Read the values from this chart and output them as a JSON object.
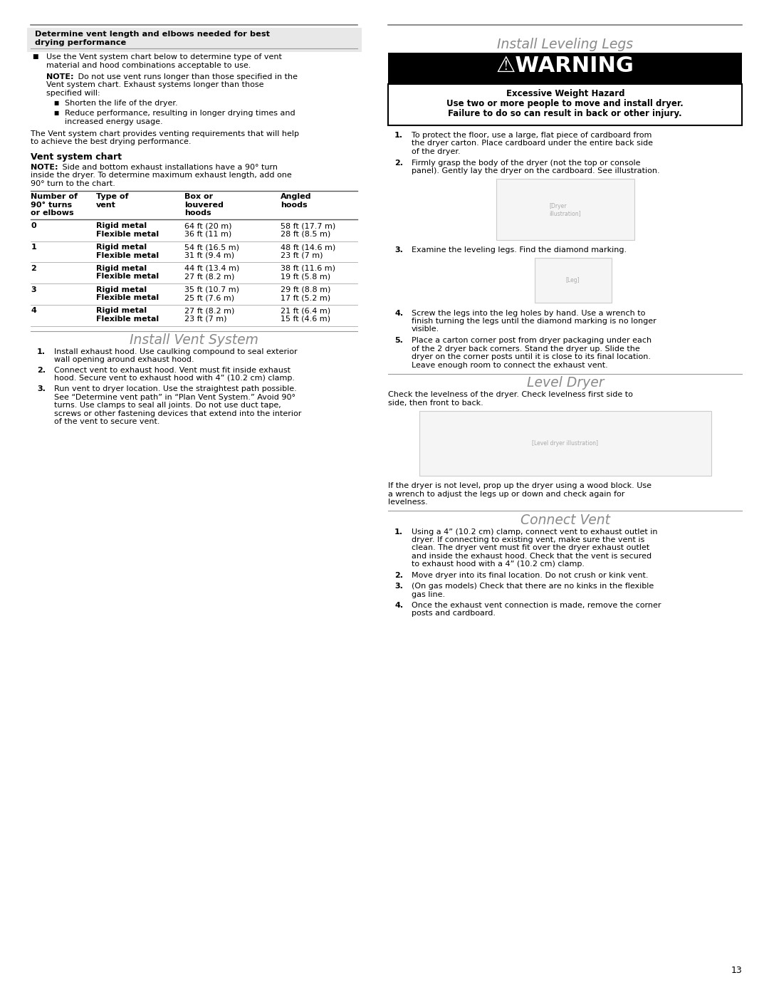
{
  "page_bg": "#ffffff",
  "page_width": 10.8,
  "page_height": 13.97,
  "dpi": 100,
  "top_section_title_l1": "Determine vent length and elbows needed for best",
  "top_section_title_l2": "drying performance",
  "bullet1_l1": "Use the Vent system chart below to determine type of vent",
  "bullet1_l2": "material and hood combinations acceptable to use.",
  "note1_bold": "NOTE:",
  "note1_rest_l1": " Do not use vent runs longer than those specified in the",
  "note1_rest_l2": "Vent system chart. Exhaust systems longer than those",
  "note1_rest_l3": "specified will:",
  "sub_bullet1": "Shorten the life of the dryer.",
  "sub_bullet2_l1": "Reduce performance, resulting in longer drying times and",
  "sub_bullet2_l2": "increased energy usage.",
  "para1_l1": "The Vent system chart provides venting requirements that will help",
  "para1_l2": "to achieve the best drying performance.",
  "vent_chart_title": "Vent system chart",
  "vent_chart_note_bold": "NOTE:",
  "vent_chart_note_l1": " Side and bottom exhaust installations have a 90° turn",
  "vent_chart_note_l2": "inside the dryer. To determine maximum exhaust length, add one",
  "vent_chart_note_l3": "90° turn to the chart.",
  "table_col0_hdr": "Number of\n90° turns\nor elbows",
  "table_col1_hdr": "Type of\nvent",
  "table_col2_hdr": "Box or\nlouvered\nhoods",
  "table_col3_hdr": "Angled\nhoods",
  "table_rows": [
    [
      "0",
      "Rigid metal\nFlexible metal",
      "64 ft (20 m)\n36 ft (11 m)",
      "58 ft (17.7 m)\n28 ft (8.5 m)"
    ],
    [
      "1",
      "Rigid metal\nFlexible metal",
      "54 ft (16.5 m)\n31 ft (9.4 m)",
      "48 ft (14.6 m)\n23 ft (7 m)"
    ],
    [
      "2",
      "Rigid metal\nFlexible metal",
      "44 ft (13.4 m)\n27 ft (8.2 m)",
      "38 ft (11.6 m)\n19 ft (5.8 m)"
    ],
    [
      "3",
      "Rigid metal\nFlexible metal",
      "35 ft (10.7 m)\n25 ft (7.6 m)",
      "29 ft (8.8 m)\n17 ft (5.2 m)"
    ],
    [
      "4",
      "Rigid metal\nFlexible metal",
      "27 ft (8.2 m)\n23 ft (7 m)",
      "21 ft (6.4 m)\n15 ft (4.6 m)"
    ]
  ],
  "install_vent_title": "Install Vent System",
  "ivs1_l1": "Install exhaust hood. Use caulking compound to seal exterior",
  "ivs1_l2": "wall opening around exhaust hood.",
  "ivs2_l1": "Connect vent to exhaust hood. Vent must fit inside exhaust",
  "ivs2_l2": "hood. Secure vent to exhaust hood with 4” (10.2 cm) clamp.",
  "ivs3_l1": "Run vent to dryer location. Use the straightest path possible.",
  "ivs3_l2": "See “Determine vent path” in “Plan Vent System.” Avoid 90°",
  "ivs3_l3": "turns. Use clamps to seal all joints. Do not use duct tape,",
  "ivs3_l4": "screws or other fastening devices that extend into the interior",
  "ivs3_l5": "of the vent to secure vent.",
  "right_title": "Install Leveling Legs",
  "warning_text": "⚠WARNING",
  "warning_sub_title": "Excessive Weight Hazard",
  "warning_l1": "Use two or more people to move and install dryer.",
  "warning_l2": "Failure to do so can result in back or other injury.",
  "lev1_l1": "To protect the floor, use a large, flat piece of cardboard from",
  "lev1_l2": "the dryer carton. Place cardboard under the entire back side",
  "lev1_l3": "of the dryer.",
  "lev2_l1": "Firmly grasp the body of the dryer (not the top or console",
  "lev2_l2": "panel). Gently lay the dryer on the cardboard. See illustration.",
  "lev3": "Examine the leveling legs. Find the diamond marking.",
  "lev4_l1": "Screw the legs into the leg holes by hand. Use a wrench to",
  "lev4_l2": "finish turning the legs until the diamond marking is no longer",
  "lev4_l3": "visible.",
  "lev5_l1": "Place a carton corner post from dryer packaging under each",
  "lev5_l2": "of the 2 dryer back corners. Stand the dryer up. Slide the",
  "lev5_l3": "dryer on the corner posts until it is close to its final location.",
  "lev5_l4": "Leave enough room to connect the exhaust vent.",
  "level_dryer_title": "Level Dryer",
  "ld_l1": "Check the levelness of the dryer. Check levelness first side to",
  "ld_l2": "side, then front to back.",
  "ld_after_l1": "If the dryer is not level, prop up the dryer using a wood block. Use",
  "ld_after_l2": "a wrench to adjust the legs up or down and check again for",
  "ld_after_l3": "levelness.",
  "connect_vent_title": "Connect Vent",
  "cv1_l1": "Using a 4” (10.2 cm) clamp, connect vent to exhaust outlet in",
  "cv1_l2": "dryer. If connecting to existing vent, make sure the vent is",
  "cv1_l3": "clean. The dryer vent must fit over the dryer exhaust outlet",
  "cv1_l4": "and inside the exhaust hood. Check that the vent is secured",
  "cv1_l5": "to exhaust hood with a 4” (10.2 cm) clamp.",
  "cv2": "Move dryer into its final location. Do not crush or kink vent.",
  "cv3_l1": "(On gas models) Check that there are no kinks in the flexible",
  "cv3_l2": "gas line.",
  "cv4_l1": "Once the exhaust vent connection is made, remove the corner",
  "cv4_l2": "posts and cardboard.",
  "page_number": "13",
  "section_title_color": "#8a8a8a",
  "line_color": "#aaaaaa",
  "dark_line_color": "#555555",
  "text_color": "#000000",
  "fs_body": 8.0,
  "fs_section_title": 13.5,
  "fs_warning": 22
}
